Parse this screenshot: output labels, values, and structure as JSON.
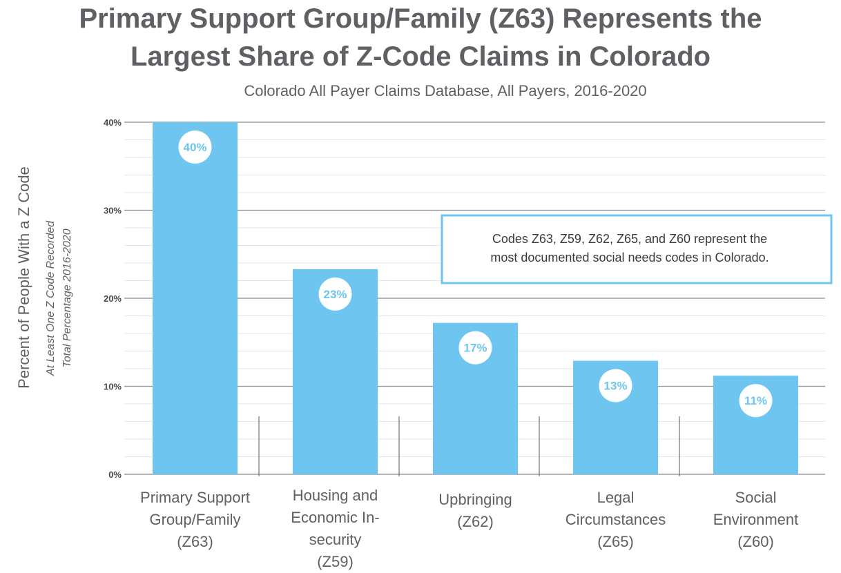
{
  "chart_data": {
    "type": "bar",
    "title_lines": [
      "Primary Support Group/Family (Z63) Represents the",
      "Largest Share of Z-Code Claims in Colorado"
    ],
    "subtitle": "Colorado All Payer Claims Database, All Payers, 2016-2020",
    "ylabel": "Percent of People With a Z Code",
    "ylabel_sub_lines": [
      "At Least One Z Code Recorded",
      "Total Percentage 2016-2020"
    ],
    "categories": [
      [
        "Primary Support",
        "Group/Family",
        "(Z63)"
      ],
      [
        "Housing and",
        "Economic In-",
        "security",
        "(Z59)"
      ],
      [
        "Upbringing",
        "(Z62)"
      ],
      [
        "Legal",
        "Circumstances",
        "(Z65)"
      ],
      [
        "Social",
        "Environment",
        "(Z60)"
      ]
    ],
    "values": [
      40,
      23.3,
      17.2,
      12.9,
      11.2
    ],
    "data_labels": [
      "40%",
      "23%",
      "17%",
      "13%",
      "11%"
    ],
    "ylim": [
      0,
      40
    ],
    "y_ticks": [
      0,
      10,
      20,
      30,
      40
    ],
    "y_tick_labels": [
      "0%",
      "10%",
      "20%",
      "30%",
      "40%"
    ],
    "grid": true,
    "annotation_lines": [
      "Codes Z63, Z59, Z62, Z65, and Z60 represent the",
      "most documented social needs codes in Colorado."
    ],
    "colors": {
      "bar": "#6ec6f0",
      "text": "#5f6064",
      "grid_major": "#8a8a8a",
      "grid_minor": "#e6e6e6",
      "annotation_border": "#6ec6f0"
    }
  }
}
